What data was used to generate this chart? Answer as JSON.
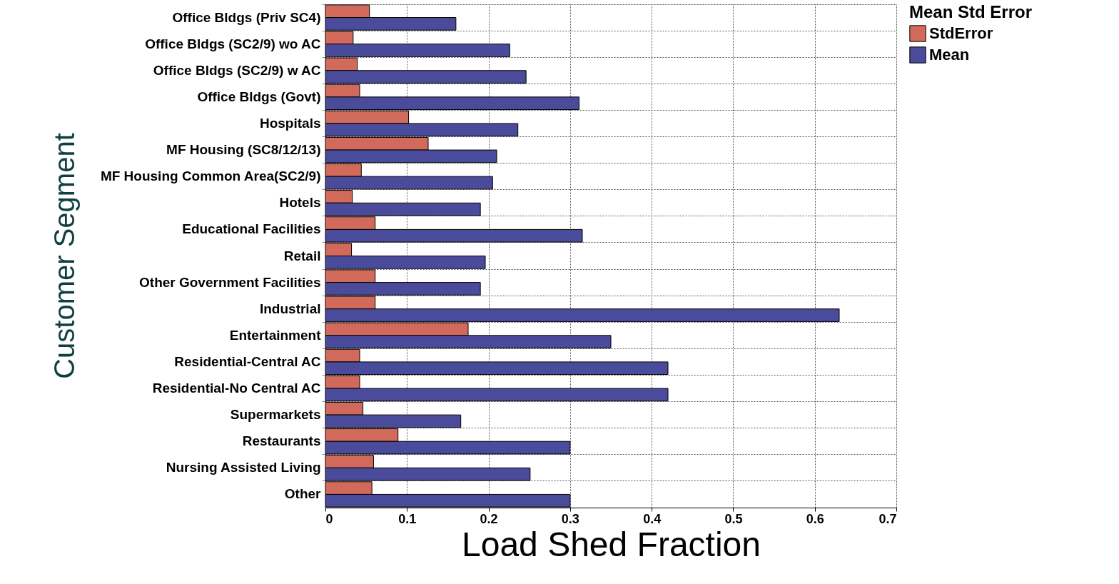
{
  "chart_data": {
    "type": "bar",
    "orientation": "horizontal",
    "xlabel": "Load Shed Fraction",
    "ylabel": "Customer Segment",
    "legend_title": "Mean Std Error",
    "legend": "right",
    "categories": [
      "Office Bldgs (Priv SC4)",
      "Office Bldgs (SC2/9) wo AC",
      "Office Bldgs (SC2/9) w AC",
      "Office Bldgs (Govt)",
      "Hospitals",
      "MF Housing (SC8/12/13)",
      "MF Housing Common Area(SC2/9)",
      "Hotels",
      "Educational Facilities",
      "Retail",
      "Other Government Facilities",
      "Industrial",
      "Entertainment",
      "Residential-Central AC",
      "Residential-No Central AC",
      "Supermarkets",
      "Restaurants",
      "Nursing Assisted Living",
      "Other"
    ],
    "series": [
      {
        "name": "StdError",
        "color": "#d26a5c",
        "values": [
          0.054,
          0.034,
          0.039,
          0.042,
          0.102,
          0.126,
          0.044,
          0.033,
          0.061,
          0.032,
          0.061,
          0.061,
          0.175,
          0.042,
          0.042,
          0.046,
          0.089,
          0.059,
          0.057
        ]
      },
      {
        "name": "Mean",
        "color": "#4b4b9b",
        "values": [
          0.16,
          0.226,
          0.246,
          0.311,
          0.236,
          0.21,
          0.205,
          0.19,
          0.315,
          0.196,
          0.19,
          0.63,
          0.35,
          0.42,
          0.42,
          0.166,
          0.3,
          0.251,
          0.3
        ]
      }
    ],
    "xlim": [
      0,
      0.7
    ],
    "xticks": [
      0,
      0.1,
      0.2,
      0.3,
      0.4,
      0.5,
      0.6,
      0.7
    ],
    "grid": true
  }
}
